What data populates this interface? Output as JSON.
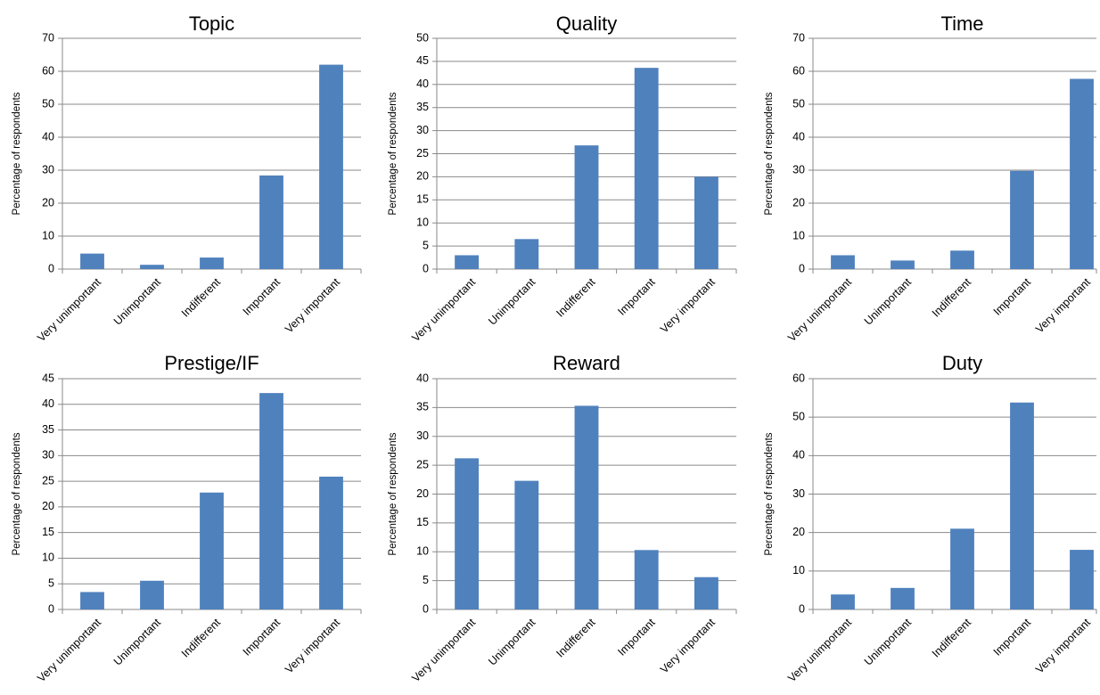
{
  "figure": {
    "colors": {
      "bar": "#4f81bd",
      "grid": "#8a8a8a",
      "axis": "#8a8a8a"
    }
  },
  "chart_data": [
    {
      "type": "bar",
      "title": "Topic",
      "ylabel": "Percentage of respondents",
      "xlabel": "",
      "categories": [
        "Very unimportant",
        "Unimportant",
        "Indifferent",
        "Important",
        "Very important"
      ],
      "values": [
        4.7,
        1.3,
        3.5,
        28.4,
        62.0
      ],
      "ylim": [
        0,
        70
      ],
      "yticks": [
        0,
        10,
        20,
        30,
        40,
        50,
        60,
        70
      ],
      "grid": true
    },
    {
      "type": "bar",
      "title": "Quality",
      "ylabel": "Percentage of respondents",
      "xlabel": "",
      "categories": [
        "Very unimportant",
        "Unimportant",
        "Indifferent",
        "Important",
        "Very important"
      ],
      "values": [
        3.0,
        6.5,
        26.8,
        43.6,
        20.0
      ],
      "ylim": [
        0,
        50
      ],
      "yticks": [
        0,
        5,
        10,
        15,
        20,
        25,
        30,
        35,
        40,
        45,
        50
      ],
      "grid": true
    },
    {
      "type": "bar",
      "title": "Time",
      "ylabel": "Percentage of respondents",
      "xlabel": "",
      "categories": [
        "Very unimportant",
        "Unimportant",
        "Indifferent",
        "Important",
        "Very important"
      ],
      "values": [
        4.2,
        2.6,
        5.6,
        29.8,
        57.7
      ],
      "ylim": [
        0,
        70
      ],
      "yticks": [
        0,
        10,
        20,
        30,
        40,
        50,
        60,
        70
      ],
      "grid": true
    },
    {
      "type": "bar",
      "title": "Prestige/IF",
      "ylabel": "Percentage of respondents",
      "xlabel": "",
      "categories": [
        "Very unimportant",
        "Unimportant",
        "Indifferent",
        "Important",
        "Very important"
      ],
      "values": [
        3.4,
        5.6,
        22.8,
        42.2,
        25.9
      ],
      "ylim": [
        0,
        45
      ],
      "yticks": [
        0,
        5,
        10,
        15,
        20,
        25,
        30,
        35,
        40,
        45
      ],
      "grid": true
    },
    {
      "type": "bar",
      "title": "Reward",
      "ylabel": "Percentage of respondents",
      "xlabel": "",
      "categories": [
        "Very unimportant",
        "Unimportant",
        "Indifferent",
        "Important",
        "Very important"
      ],
      "values": [
        26.2,
        22.3,
        35.3,
        10.3,
        5.6
      ],
      "ylim": [
        0,
        40
      ],
      "yticks": [
        0,
        5,
        10,
        15,
        20,
        25,
        30,
        35,
        40
      ],
      "grid": true
    },
    {
      "type": "bar",
      "title": "Duty",
      "ylabel": "Percentage of respondents",
      "xlabel": "",
      "categories": [
        "Very unimportant",
        "Unimportant",
        "Indifferent",
        "Important",
        "Very important"
      ],
      "values": [
        3.9,
        5.6,
        21.0,
        53.8,
        15.5
      ],
      "ylim": [
        0,
        60
      ],
      "yticks": [
        0,
        10,
        20,
        30,
        40,
        50,
        60
      ],
      "grid": true
    }
  ]
}
